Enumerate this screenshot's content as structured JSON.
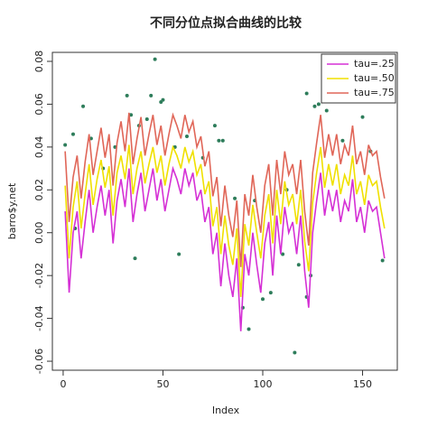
{
  "chart_data": {
    "type": "line",
    "title": "不同分位点拟合曲线的比较",
    "xlabel": "Index",
    "ylabel": "barro$y.net",
    "x": [
      1,
      3,
      5,
      7,
      9,
      11,
      13,
      15,
      17,
      19,
      21,
      23,
      25,
      27,
      29,
      31,
      33,
      35,
      37,
      39,
      41,
      43,
      45,
      47,
      49,
      51,
      53,
      55,
      57,
      59,
      61,
      63,
      65,
      67,
      69,
      71,
      73,
      75,
      77,
      79,
      81,
      83,
      85,
      87,
      89,
      91,
      93,
      95,
      97,
      99,
      101,
      103,
      105,
      107,
      109,
      111,
      113,
      115,
      117,
      119,
      121,
      123,
      125,
      127,
      129,
      131,
      133,
      135,
      137,
      139,
      141,
      143,
      145,
      147,
      149,
      151,
      153,
      155,
      157,
      159,
      161
    ],
    "series": [
      {
        "name": "tau=.25",
        "color": "#d530d5",
        "values": [
          0.01,
          -0.028,
          0.0,
          0.01,
          -0.012,
          0.005,
          0.02,
          0.0,
          0.012,
          0.022,
          0.008,
          0.02,
          -0.005,
          0.015,
          0.025,
          0.012,
          0.03,
          0.005,
          0.018,
          0.028,
          0.01,
          0.02,
          0.03,
          0.015,
          0.025,
          0.01,
          0.02,
          0.03,
          0.025,
          0.018,
          0.03,
          0.022,
          0.028,
          0.015,
          0.02,
          0.005,
          0.012,
          -0.01,
          0.0,
          -0.025,
          -0.005,
          -0.02,
          -0.03,
          -0.012,
          -0.046,
          -0.01,
          -0.02,
          0.0,
          -0.015,
          -0.028,
          -0.005,
          0.005,
          -0.02,
          0.008,
          -0.01,
          0.012,
          0.0,
          0.005,
          -0.01,
          0.008,
          -0.018,
          -0.035,
          0.0,
          0.015,
          0.028,
          0.008,
          0.02,
          0.01,
          0.02,
          0.005,
          0.015,
          0.01,
          0.025,
          0.005,
          0.012,
          0.0,
          0.015,
          0.01,
          0.012,
          0.0,
          -0.012
        ]
      },
      {
        "name": "tau=.50",
        "color": "#f0e000",
        "values": [
          0.022,
          -0.012,
          0.012,
          0.024,
          0.002,
          0.018,
          0.032,
          0.013,
          0.025,
          0.034,
          0.021,
          0.031,
          0.008,
          0.028,
          0.036,
          0.025,
          0.041,
          0.018,
          0.03,
          0.038,
          0.023,
          0.032,
          0.04,
          0.028,
          0.036,
          0.022,
          0.032,
          0.04,
          0.036,
          0.03,
          0.04,
          0.033,
          0.038,
          0.027,
          0.032,
          0.018,
          0.024,
          0.003,
          0.012,
          -0.01,
          0.008,
          -0.006,
          -0.015,
          0.002,
          -0.03,
          0.004,
          -0.006,
          0.013,
          0.0,
          -0.012,
          0.008,
          0.018,
          -0.005,
          0.02,
          0.004,
          0.024,
          0.013,
          0.018,
          0.004,
          0.02,
          -0.004,
          -0.018,
          0.014,
          0.028,
          0.04,
          0.021,
          0.032,
          0.022,
          0.032,
          0.018,
          0.027,
          0.022,
          0.036,
          0.018,
          0.024,
          0.013,
          0.027,
          0.022,
          0.024,
          0.012,
          0.002
        ]
      },
      {
        "name": "tau=.75",
        "color": "#e06658",
        "values": [
          0.038,
          0.005,
          0.026,
          0.036,
          0.016,
          0.033,
          0.046,
          0.027,
          0.038,
          0.049,
          0.035,
          0.046,
          0.022,
          0.042,
          0.052,
          0.038,
          0.056,
          0.032,
          0.044,
          0.054,
          0.036,
          0.046,
          0.055,
          0.041,
          0.05,
          0.036,
          0.046,
          0.055,
          0.05,
          0.044,
          0.055,
          0.047,
          0.052,
          0.04,
          0.045,
          0.031,
          0.038,
          0.017,
          0.026,
          0.003,
          0.022,
          0.008,
          -0.002,
          0.015,
          -0.016,
          0.018,
          0.008,
          0.027,
          0.012,
          0.0,
          0.022,
          0.032,
          0.008,
          0.034,
          0.018,
          0.038,
          0.027,
          0.032,
          0.018,
          0.034,
          0.01,
          -0.006,
          0.028,
          0.042,
          0.055,
          0.035,
          0.046,
          0.036,
          0.046,
          0.032,
          0.041,
          0.036,
          0.05,
          0.032,
          0.038,
          0.027,
          0.041,
          0.036,
          0.038,
          0.026,
          0.016
        ]
      }
    ],
    "points": {
      "color": "#2e7d5b",
      "x": [
        1,
        5,
        10,
        14,
        20,
        26,
        32,
        34,
        38,
        42,
        44,
        46,
        49,
        50,
        56,
        62,
        70,
        76,
        78,
        80,
        86,
        90,
        93,
        100,
        104,
        110,
        116,
        118,
        122,
        124,
        122,
        126,
        128,
        132,
        140,
        150,
        154,
        36,
        58,
        6,
        160,
        96,
        112
      ],
      "y": [
        0.041,
        0.046,
        0.059,
        0.044,
        0.03,
        0.04,
        0.064,
        0.055,
        0.05,
        0.053,
        0.064,
        0.081,
        0.061,
        0.062,
        0.04,
        0.045,
        0.035,
        0.05,
        0.043,
        0.043,
        0.016,
        -0.035,
        -0.045,
        -0.031,
        -0.028,
        -0.01,
        -0.056,
        -0.015,
        -0.03,
        -0.02,
        0.065,
        0.059,
        0.06,
        0.057,
        0.043,
        0.054,
        0.038,
        -0.012,
        -0.01,
        0.002,
        -0.013,
        0.015,
        0.02
      ]
    },
    "xlim": [
      -5.4,
      167.4
    ],
    "ylim": [
      -0.0642,
      0.0842
    ],
    "xticks": [
      0,
      50,
      100,
      150
    ],
    "yticks": [
      -0.06,
      -0.04,
      -0.02,
      {
        "value": 0,
        "label": "0.00"
      },
      0.02,
      0.04,
      0.06,
      0.08
    ],
    "legend": "topright"
  }
}
